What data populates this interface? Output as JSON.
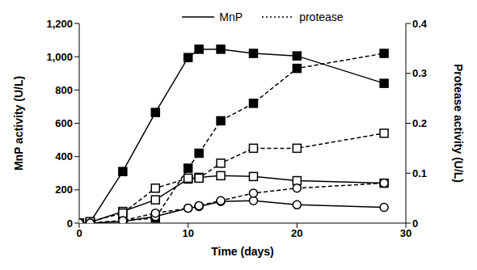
{
  "chart_data": {
    "type": "line",
    "x_label": "Time (days)",
    "y_label": "MnP activity (U/L)",
    "y2_label": "Protease activity (U/L)",
    "x": [
      0,
      1,
      4,
      7,
      10,
      11,
      13,
      16,
      20,
      28
    ],
    "xlim": [
      0,
      30
    ],
    "xticks": [
      0,
      10,
      20,
      30
    ],
    "ylim": [
      0,
      1200
    ],
    "yticks": [
      0,
      200,
      400,
      600,
      800,
      {
        "value": 1000,
        "label": "1,000"
      },
      {
        "value": 1200,
        "label": "1,200"
      }
    ],
    "y2lim": [
      0,
      0.4
    ],
    "y2ticks": [
      0,
      0.1,
      0.2,
      0.3,
      0.4
    ],
    "legend": "top",
    "grid": false,
    "series": [
      {
        "name": "MnP",
        "color": "#000000",
        "marker": "square",
        "line_style": "solid",
        "values": [
          0,
          5,
          310,
          665,
          995,
          1045,
          1045,
          1020,
          1005,
          840
        ]
      },
      {
        "name": "protease",
        "axis": "y2",
        "color": "#000000",
        "marker": "square",
        "line_style": "dashed",
        "values": [
          0,
          0,
          0.005,
          0.01,
          0.11,
          0.14,
          0.205,
          0.24,
          0.31,
          0.34
        ]
      },
      {
        "name": "MnP",
        "color": "#000000",
        "marker": "square_open",
        "line_style": "solid",
        "values": [
          0,
          5,
          70,
          140,
          265,
          275,
          285,
          280,
          255,
          240
        ]
      },
      {
        "name": "protease",
        "axis": "y2",
        "color": "#000000",
        "marker": "square_open",
        "line_style": "dashed",
        "values": [
          0,
          0.003,
          0.02,
          0.07,
          0.09,
          0.09,
          0.12,
          0.15,
          0.15,
          0.18
        ]
      },
      {
        "name": "MnP",
        "color": "#000000",
        "marker": "circle_open",
        "line_style": "solid",
        "values": [
          0,
          0,
          10,
          40,
          90,
          100,
          130,
          135,
          110,
          95
        ]
      },
      {
        "name": "protease",
        "axis": "y2",
        "color": "#000000",
        "marker": "circle_open",
        "line_style": "dashed",
        "values": [
          0,
          0,
          0.005,
          0.02,
          0.03,
          0.035,
          0.045,
          0.06,
          0.07,
          0.08
        ]
      }
    ]
  }
}
